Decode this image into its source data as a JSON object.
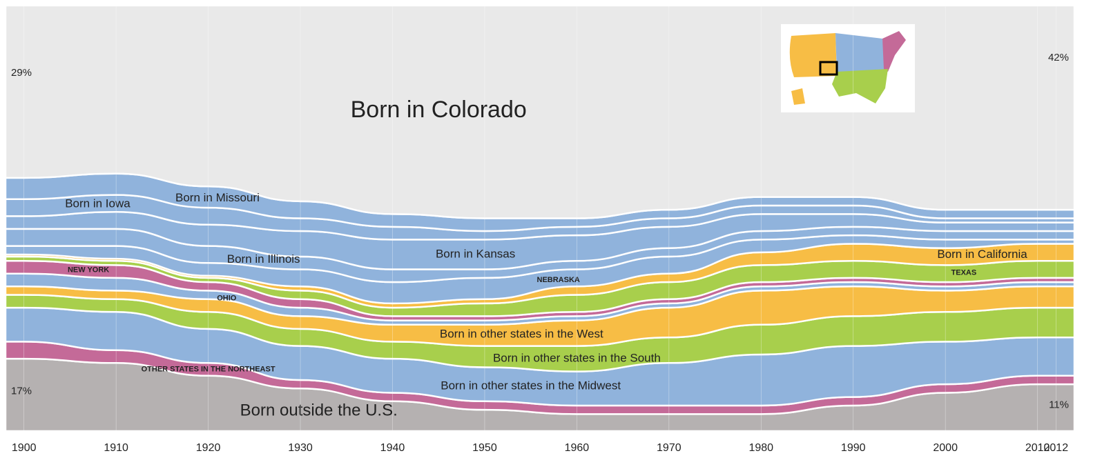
{
  "chart_data": {
    "type": "stream",
    "x": [
      1900,
      1910,
      1920,
      1930,
      1940,
      1950,
      1960,
      1970,
      1980,
      1990,
      2000,
      2010,
      2012
    ],
    "xticks": [
      1900,
      1910,
      1920,
      1930,
      1940,
      1950,
      1960,
      1970,
      1980,
      1990,
      2000,
      2010,
      2012
    ],
    "xlim": [
      1898,
      2014
    ],
    "ylim": [
      0,
      100
    ],
    "series": [
      {
        "name": "Born in Colorado",
        "color": "#e9e9e9",
        "values": [
          29,
          29,
          36,
          40,
          44,
          44,
          42,
          40,
          36,
          38,
          41,
          42,
          42
        ],
        "value_labels": [
          "29%",
          null,
          null,
          null,
          null,
          null,
          null,
          null,
          null,
          null,
          null,
          null,
          "42%"
        ]
      },
      {
        "name": "Born in Missouri",
        "color": "#90b3dc",
        "values": [
          5,
          5,
          5,
          4,
          3,
          3,
          2,
          2,
          2,
          2,
          2,
          2,
          2
        ]
      },
      {
        "name": "Born in Iowa",
        "color": "#90b3dc",
        "values": [
          4,
          4,
          4,
          3,
          3,
          2,
          2,
          2,
          2,
          2,
          1,
          1,
          1
        ]
      },
      {
        "name": "Born in Kansas",
        "color": "#90b3dc",
        "values": [
          3,
          4,
          5,
          6,
          7,
          7,
          6,
          5,
          4,
          3,
          2,
          2,
          2
        ]
      },
      {
        "name": "Born in Illinois",
        "color": "#90b3dc",
        "values": [
          4,
          4,
          4,
          3,
          3,
          2,
          2,
          2,
          2,
          2,
          2,
          2,
          2
        ]
      },
      {
        "name": "NEBRASKA",
        "color": "#90b3dc",
        "values": [
          2,
          3,
          3,
          4,
          5,
          5,
          4,
          4,
          3,
          2,
          2,
          1,
          1
        ]
      },
      {
        "name": "Born in California",
        "color": "#f7bd45",
        "values": [
          0.5,
          0.5,
          0.5,
          1,
          1,
          1,
          2,
          2,
          3,
          4,
          4,
          4,
          4
        ]
      },
      {
        "name": "TEXAS",
        "color": "#a8cf4c",
        "values": [
          1,
          1,
          1,
          2,
          2,
          3,
          4,
          4,
          4,
          4,
          4,
          4,
          4
        ]
      },
      {
        "name": "NEW YORK",
        "color": "#c46a98",
        "values": [
          3,
          3,
          2,
          2,
          1,
          1,
          1,
          1,
          1,
          1,
          1,
          1,
          1
        ]
      },
      {
        "name": "OHIO",
        "color": "#90b3dc",
        "values": [
          3,
          3,
          2,
          2,
          1,
          1,
          1,
          1,
          1,
          1,
          1,
          1,
          1
        ]
      },
      {
        "name": "Born in other states in the West",
        "color": "#f7bd45",
        "values": [
          2,
          2,
          3,
          3,
          4,
          5,
          6,
          7,
          8,
          7,
          5,
          5,
          5
        ]
      },
      {
        "name": "Born in other states in the South",
        "color": "#a8cf4c",
        "values": [
          3,
          3,
          4,
          4,
          4,
          5,
          6,
          6,
          7,
          7,
          7,
          7,
          7
        ]
      },
      {
        "name": "Born in other states in the Midwest",
        "color": "#90b3dc",
        "values": [
          8,
          9,
          8,
          8,
          8,
          8,
          8,
          10,
          12,
          12,
          10,
          9,
          9
        ]
      },
      {
        "name": "OTHER STATES IN THE NORTHEAST",
        "color": "#c46a98",
        "values": [
          4,
          3,
          3,
          2,
          2,
          2,
          2,
          2,
          2,
          2,
          2,
          2,
          2
        ]
      },
      {
        "name": "Born outside the U.S.",
        "color": "#b5b1b1",
        "values": [
          17,
          16,
          13,
          10,
          7,
          5,
          4,
          4,
          4,
          6,
          9,
          11,
          11
        ],
        "value_labels": [
          "17%",
          null,
          null,
          null,
          null,
          null,
          null,
          null,
          null,
          null,
          null,
          null,
          "11%"
        ]
      }
    ]
  }
}
